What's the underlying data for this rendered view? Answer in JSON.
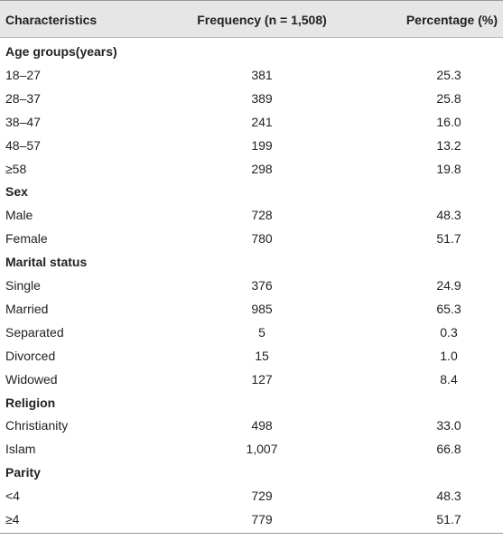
{
  "table": {
    "header": [
      "Characteristics",
      "Frequency (n = 1,508)",
      "Percentage (%)"
    ],
    "sections": [
      {
        "title": "Age groups(years)",
        "rows": [
          [
            "18–27",
            "381",
            "25.3"
          ],
          [
            "28–37",
            "389",
            "25.8"
          ],
          [
            "38–47",
            "241",
            "16.0"
          ],
          [
            "48–57",
            "199",
            "13.2"
          ],
          [
            "≥58",
            "298",
            "19.8"
          ]
        ]
      },
      {
        "title": "Sex",
        "rows": [
          [
            "Male",
            "728",
            "48.3"
          ],
          [
            "Female",
            "780",
            "51.7"
          ]
        ]
      },
      {
        "title": "Marital status",
        "rows": [
          [
            "Single",
            "376",
            "24.9"
          ],
          [
            "Married",
            "985",
            "65.3"
          ],
          [
            "Separated",
            "5",
            "0.3"
          ],
          [
            "Divorced",
            "15",
            "1.0"
          ],
          [
            "Widowed",
            "127",
            "8.4"
          ]
        ]
      },
      {
        "title": "Religion",
        "rows": [
          [
            "Christianity",
            "498",
            "33.0"
          ],
          [
            "Islam",
            "1,007",
            "66.8"
          ]
        ]
      },
      {
        "title": "Parity",
        "rows": [
          [
            "<4",
            "729",
            "48.3"
          ],
          [
            "≥4",
            "779",
            "51.7"
          ]
        ]
      }
    ]
  }
}
